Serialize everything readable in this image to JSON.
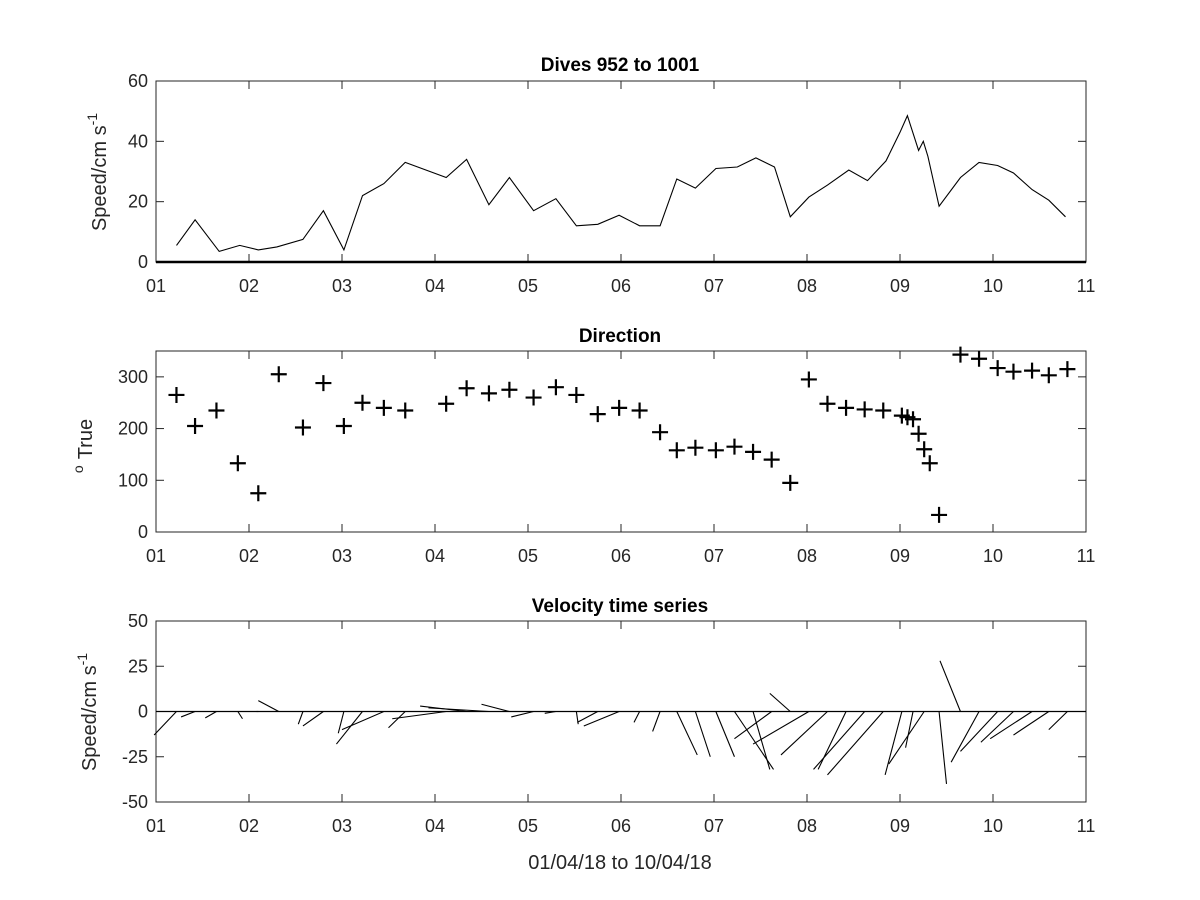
{
  "chart_data": [
    {
      "type": "line",
      "title": "Dives 952 to 1001",
      "ylabel": "Speed/cm s",
      "ylabel_superscript": "-1",
      "xlabel": "",
      "xlim": [
        1,
        11
      ],
      "ylim": [
        0,
        60
      ],
      "xticks": [
        "01",
        "02",
        "03",
        "04",
        "05",
        "06",
        "07",
        "08",
        "09",
        "10",
        "11"
      ],
      "yticks": [
        "0",
        "20",
        "40",
        "60"
      ],
      "grid": false,
      "series": [
        {
          "x": [
            1.22,
            1.42,
            1.68,
            1.9,
            2.1,
            2.3,
            2.58,
            2.8,
            3.02,
            3.22,
            3.45,
            3.68,
            4.12,
            4.34,
            4.58,
            4.8,
            5.06,
            5.3,
            5.52,
            5.75,
            5.98,
            6.2,
            6.42,
            6.6,
            6.8,
            7.02,
            7.25,
            7.45,
            7.65,
            7.82,
            8.02,
            8.22,
            8.45,
            8.65,
            8.85,
            9.0,
            9.08,
            9.2,
            9.25,
            9.3,
            9.42,
            9.65,
            9.85,
            10.05,
            10.22,
            10.42,
            10.6,
            10.78
          ],
          "values": [
            5.5,
            14,
            3.5,
            5.5,
            4,
            5,
            7.5,
            17,
            4,
            22,
            26,
            33,
            28,
            34,
            19,
            28,
            17,
            21,
            12,
            12.5,
            15.5,
            12,
            12,
            27.5,
            24.5,
            31,
            31.5,
            34.5,
            31.5,
            15,
            21.5,
            25.5,
            30.5,
            27,
            33.5,
            43,
            48.5,
            37,
            40,
            35,
            18.5,
            28,
            33,
            32,
            29.5,
            24,
            20.5,
            15
          ]
        }
      ]
    },
    {
      "type": "scatter",
      "title": "Direction",
      "ylabel": "True",
      "ylabel_superscript": "o",
      "xlabel": "",
      "xlim": [
        1,
        11
      ],
      "ylim": [
        0,
        350
      ],
      "xticks": [
        "01",
        "02",
        "03",
        "04",
        "05",
        "06",
        "07",
        "08",
        "09",
        "10",
        "11"
      ],
      "yticks": [
        "0",
        "100",
        "200",
        "300"
      ],
      "grid": false,
      "marker": "+",
      "series": [
        {
          "x": [
            1.22,
            1.42,
            1.65,
            1.88,
            2.1,
            2.32,
            2.58,
            2.8,
            3.02,
            3.22,
            3.45,
            3.68,
            4.12,
            4.34,
            4.58,
            4.8,
            5.06,
            5.3,
            5.52,
            5.75,
            5.98,
            6.2,
            6.42,
            6.6,
            6.8,
            7.02,
            7.22,
            7.42,
            7.62,
            7.82,
            8.02,
            8.22,
            8.42,
            8.62,
            8.82,
            9.02,
            9.08,
            9.14,
            9.2,
            9.26,
            9.32,
            9.42,
            9.65,
            9.85,
            10.05,
            10.22,
            10.42,
            10.6,
            10.8
          ],
          "values": [
            265,
            205,
            235,
            133,
            75,
            305,
            202,
            288,
            205,
            250,
            240,
            235,
            248,
            278,
            268,
            275,
            260,
            280,
            265,
            228,
            240,
            235,
            193,
            158,
            163,
            158,
            165,
            155,
            140,
            95,
            295,
            248,
            240,
            237,
            235,
            225,
            222,
            218,
            190,
            160,
            133,
            33,
            343,
            335,
            317,
            310,
            312,
            303,
            315
          ]
        }
      ]
    },
    {
      "type": "quiver",
      "title": "Velocity time series",
      "ylabel": "Speed/cm s",
      "ylabel_superscript": "-1",
      "xlabel": "01/04/18 to 10/04/18",
      "xlim": [
        1,
        11
      ],
      "ylim": [
        -50,
        50
      ],
      "xticks": [
        "01",
        "02",
        "03",
        "04",
        "05",
        "06",
        "07",
        "08",
        "09",
        "10",
        "11"
      ],
      "yticks": [
        "-50",
        "-25",
        "0",
        "25",
        "50"
      ],
      "grid": false,
      "note": "vectors start on the zero line; u in x-axis units, v in speed units",
      "series": [
        {
          "x": [
            1.22,
            1.42,
            1.65,
            1.88,
            2.1,
            2.32,
            2.58,
            2.8,
            3.02,
            3.22,
            3.45,
            3.68,
            4.12,
            4.34,
            4.58,
            4.8,
            5.06,
            5.3,
            5.52,
            5.75,
            5.98,
            6.2,
            6.42,
            6.6,
            6.8,
            7.02,
            7.22,
            7.42,
            7.62,
            7.82,
            8.02,
            8.22,
            8.42,
            8.62,
            8.82,
            9.02,
            9.14,
            9.26,
            9.42,
            9.65,
            9.85,
            10.05,
            10.22,
            10.42,
            10.6,
            10.8
          ],
          "u": [
            -0.24,
            -0.15,
            -0.12,
            0.05,
            -0.02,
            -0.22,
            -0.05,
            -0.22,
            -0.06,
            -0.28,
            -0.45,
            -0.18,
            -0.58,
            -0.5,
            -0.65,
            -0.3,
            -0.24,
            -0.12,
            0.02,
            -0.22,
            -0.38,
            -0.06,
            -0.08,
            0.22,
            0.16,
            0.2,
            0.42,
            0.18,
            -0.4,
            -0.22,
            -0.6,
            -0.5,
            -0.3,
            -0.55,
            -0.6,
            -0.18,
            -0.08,
            -0.38,
            0.08,
            -0.22,
            -0.3,
            -0.4,
            -0.35,
            -0.45,
            -0.38,
            -0.2
          ],
          "v": [
            -13,
            -3,
            -3.5,
            -4,
            0,
            6,
            -7,
            -8,
            -12,
            -18,
            -10,
            -9,
            -4,
            3,
            2,
            4,
            -3,
            -1,
            -7,
            -6,
            -8,
            -6,
            -11,
            -24,
            -25,
            -25,
            -32,
            -32,
            -15,
            10,
            -18,
            -24,
            -32,
            -32,
            -35,
            -35,
            -20,
            -29,
            -40,
            28,
            -28,
            -22,
            -17,
            -15,
            -13,
            -10
          ]
        }
      ]
    }
  ]
}
